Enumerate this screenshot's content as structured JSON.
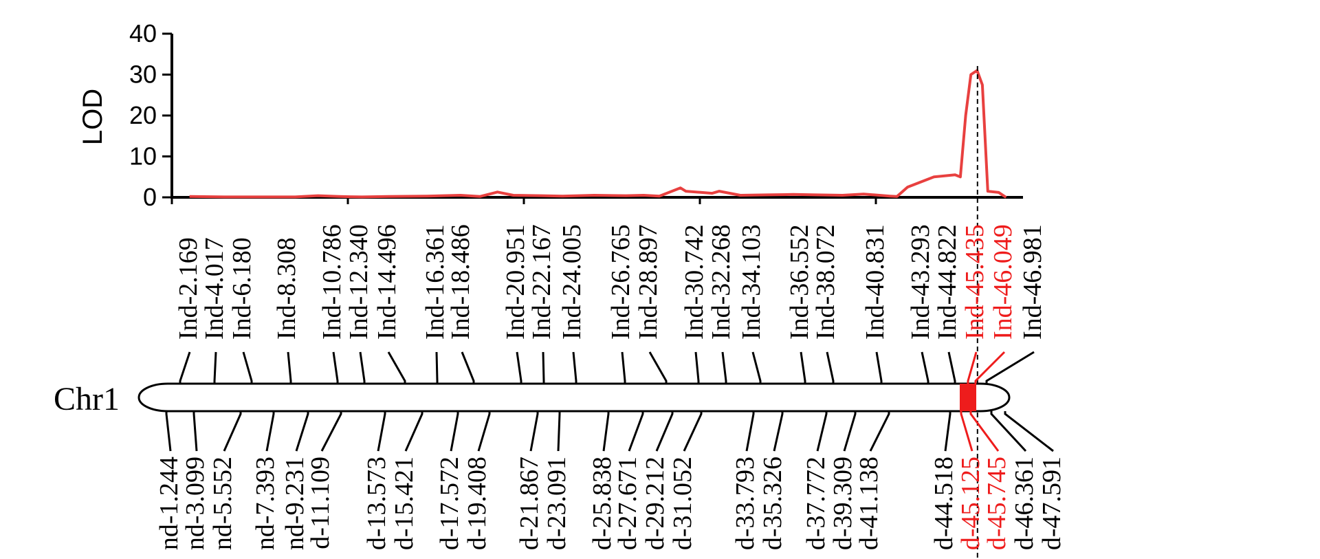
{
  "chart_data": {
    "type": "line",
    "title": "",
    "ylabel": "LOD",
    "xlabel": "",
    "ylim": [
      0,
      40
    ],
    "xlim": [
      0,
      48.5
    ],
    "yticks": [
      0,
      10,
      20,
      30,
      40
    ],
    "xticks": [
      0,
      10,
      20,
      30,
      40
    ],
    "grid": false,
    "chromosome": "Chr1",
    "peak_marker_position": 45.5,
    "highlight_interval": [
      45.125,
      46.049
    ],
    "colors": {
      "curve": "#e8403f",
      "highlight": "#ee1c1c",
      "normal": "#000000"
    },
    "series": [
      {
        "x": [
          1.0,
          3,
          5,
          7,
          8.3,
          9.5,
          10.8,
          12.3,
          14.5,
          16.4,
          17.5,
          18.5,
          19.4,
          21,
          22.2,
          24,
          25.8,
          26.8,
          27.7,
          28.9,
          29.2,
          30.7,
          31.1,
          32.3,
          33.8,
          35.3,
          36.6,
          38.1,
          39.3,
          40.8,
          41.2,
          41.8,
          43.3,
          44.5,
          44.8,
          45.1,
          45.4,
          45.75,
          46.05,
          46.36,
          46.98,
          47.4
        ],
        "y": [
          0.2,
          0.1,
          0.1,
          0.1,
          0.4,
          0.2,
          0.1,
          0.2,
          0.3,
          0.5,
          0.2,
          1.3,
          0.5,
          0.4,
          0.3,
          0.5,
          0.4,
          0.5,
          0.3,
          2.3,
          1.5,
          1.0,
          1.5,
          0.5,
          0.6,
          0.7,
          0.6,
          0.5,
          0.8,
          0.3,
          0.2,
          2.5,
          5.0,
          5.5,
          5.0,
          20.0,
          30.0,
          31.0,
          27.5,
          1.5,
          1.2,
          0.0
        ]
      }
    ],
    "markers_top": [
      {
        "label": "Ind-2.169",
        "pos": 2.169,
        "highlight": false
      },
      {
        "label": "Ind-4.017",
        "pos": 4.017,
        "highlight": false
      },
      {
        "label": "Ind-6.180",
        "pos": 6.18,
        "highlight": false
      },
      {
        "label": "Ind-8.308",
        "pos": 8.308,
        "highlight": false
      },
      {
        "label": "Ind-10.786",
        "pos": 10.786,
        "highlight": false
      },
      {
        "label": "Ind-12.340",
        "pos": 12.34,
        "highlight": false
      },
      {
        "label": "Ind-14.496",
        "pos": 14.496,
        "highlight": false
      },
      {
        "label": "Ind-16.361",
        "pos": 16.361,
        "highlight": false
      },
      {
        "label": "Ind-18.486",
        "pos": 18.486,
        "highlight": false
      },
      {
        "label": "Ind-20.951",
        "pos": 20.951,
        "highlight": false
      },
      {
        "label": "Ind-22.167",
        "pos": 22.167,
        "highlight": false
      },
      {
        "label": "Ind-24.005",
        "pos": 24.005,
        "highlight": false
      },
      {
        "label": "Ind-26.765",
        "pos": 26.765,
        "highlight": false
      },
      {
        "label": "Ind-28.897",
        "pos": 28.897,
        "highlight": false
      },
      {
        "label": "Ind-30.742",
        "pos": 30.742,
        "highlight": false
      },
      {
        "label": "Ind-32.268",
        "pos": 32.268,
        "highlight": false
      },
      {
        "label": "Ind-34.103",
        "pos": 34.103,
        "highlight": false
      },
      {
        "label": "Ind-36.552",
        "pos": 36.552,
        "highlight": false
      },
      {
        "label": "Ind-38.072",
        "pos": 38.072,
        "highlight": false
      },
      {
        "label": "Ind-40.831",
        "pos": 40.831,
        "highlight": false
      },
      {
        "label": "Ind-43.293",
        "pos": 43.293,
        "highlight": false
      },
      {
        "label": "Ind-44.822",
        "pos": 44.822,
        "highlight": false
      },
      {
        "label": "Ind-45.435",
        "pos": 45.435,
        "highlight": true
      },
      {
        "label": "Ind-46.049",
        "pos": 46.049,
        "highlight": true
      },
      {
        "label": "Ind-46.981",
        "pos": 46.981,
        "highlight": false
      }
    ],
    "markers_bottom": [
      {
        "label": "nd-1.244",
        "pos": 1.244,
        "highlight": false
      },
      {
        "label": "nd-3.099",
        "pos": 3.099,
        "highlight": false
      },
      {
        "label": "nd-5.552",
        "pos": 5.552,
        "highlight": false
      },
      {
        "label": "nd-7.393",
        "pos": 7.393,
        "highlight": false
      },
      {
        "label": "nd-9.231",
        "pos": 9.231,
        "highlight": false
      },
      {
        "label": "d-11.109",
        "pos": 11.109,
        "highlight": false
      },
      {
        "label": "d-13.573",
        "pos": 13.573,
        "highlight": false
      },
      {
        "label": "d-15.421",
        "pos": 15.421,
        "highlight": false
      },
      {
        "label": "d-17.572",
        "pos": 17.572,
        "highlight": false
      },
      {
        "label": "d-19.408",
        "pos": 19.408,
        "highlight": false
      },
      {
        "label": "d-21.867",
        "pos": 21.867,
        "highlight": false
      },
      {
        "label": "d-23.091",
        "pos": 23.091,
        "highlight": false
      },
      {
        "label": "d-25.838",
        "pos": 25.838,
        "highlight": false
      },
      {
        "label": "d-27.671",
        "pos": 27.671,
        "highlight": false
      },
      {
        "label": "d-29.212",
        "pos": 29.212,
        "highlight": false
      },
      {
        "label": "d-31.052",
        "pos": 31.052,
        "highlight": false
      },
      {
        "label": "d-33.793",
        "pos": 33.793,
        "highlight": false
      },
      {
        "label": "d-35.326",
        "pos": 35.326,
        "highlight": false
      },
      {
        "label": "d-37.772",
        "pos": 37.772,
        "highlight": false
      },
      {
        "label": "d-39.309",
        "pos": 39.309,
        "highlight": false
      },
      {
        "label": "d-41.138",
        "pos": 41.138,
        "highlight": false
      },
      {
        "label": "d-44.518",
        "pos": 44.518,
        "highlight": false
      },
      {
        "label": "d-45.125",
        "pos": 45.125,
        "highlight": true
      },
      {
        "label": "d-45.745",
        "pos": 45.745,
        "highlight": true
      },
      {
        "label": "d-46.361",
        "pos": 46.361,
        "highlight": false
      },
      {
        "label": "d-47.591",
        "pos": 47.591,
        "highlight": false
      }
    ]
  }
}
